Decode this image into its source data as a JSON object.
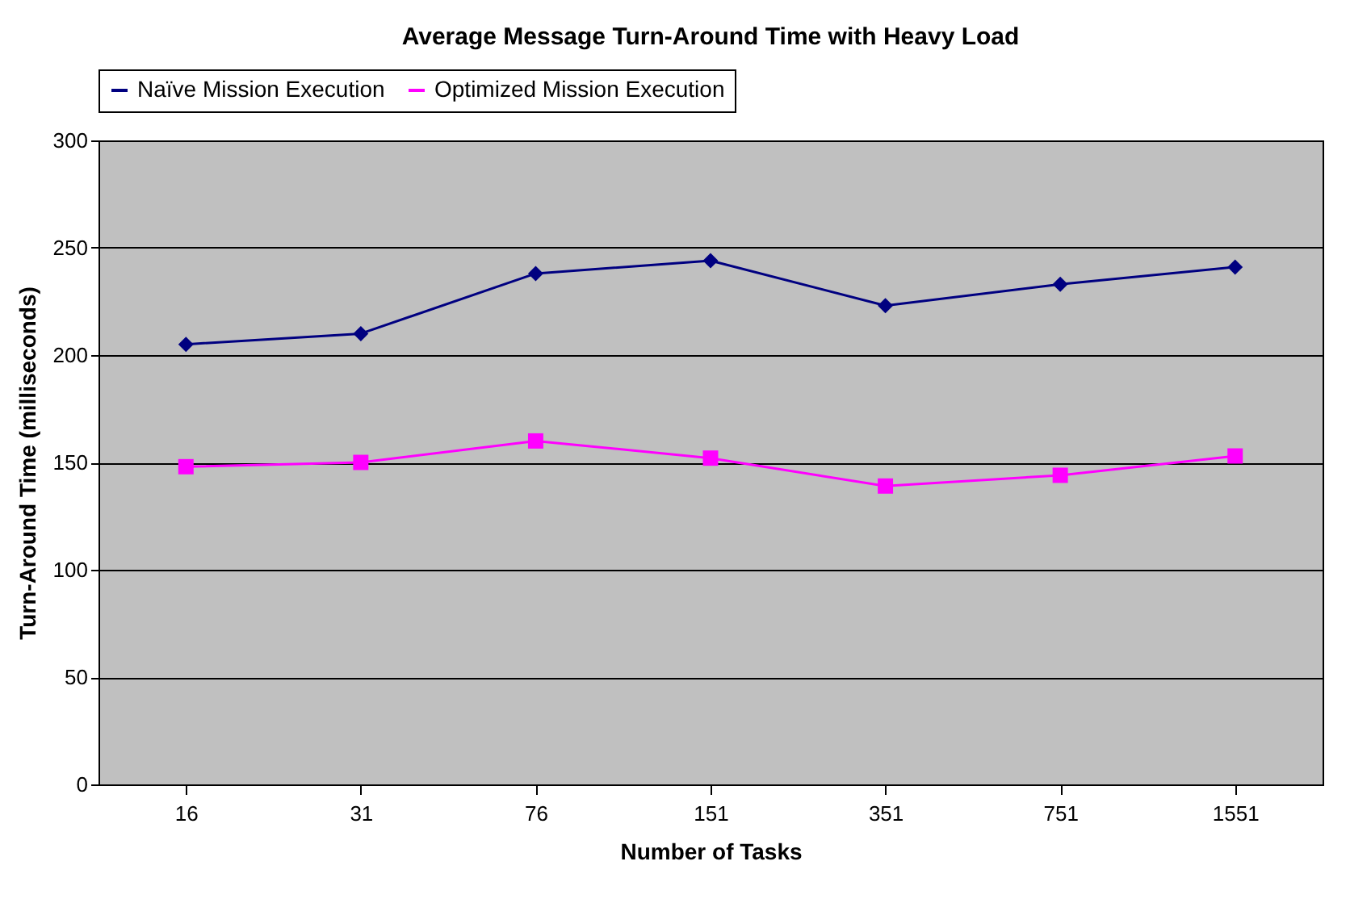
{
  "chart_data": {
    "type": "line",
    "title": "Average Message Turn-Around Time with Heavy Load",
    "xlabel": "Number of Tasks",
    "ylabel": "Turn-Around Time (milliseconds)",
    "categories": [
      "16",
      "31",
      "76",
      "151",
      "351",
      "751",
      "1551"
    ],
    "series": [
      {
        "name": "Naïve Mission Execution",
        "color": "#000080",
        "marker": "diamond",
        "values": [
          205,
          210,
          238,
          244,
          223,
          233,
          241
        ]
      },
      {
        "name": "Optimized Mission Execution",
        "color": "#ff00ff",
        "marker": "square",
        "values": [
          148,
          150,
          160,
          152,
          139,
          144,
          153
        ]
      }
    ],
    "ylim": [
      0,
      300
    ],
    "yticks": [
      0,
      50,
      100,
      150,
      200,
      250,
      300
    ],
    "grid": "y",
    "legend": "top",
    "line_style": "solid"
  }
}
